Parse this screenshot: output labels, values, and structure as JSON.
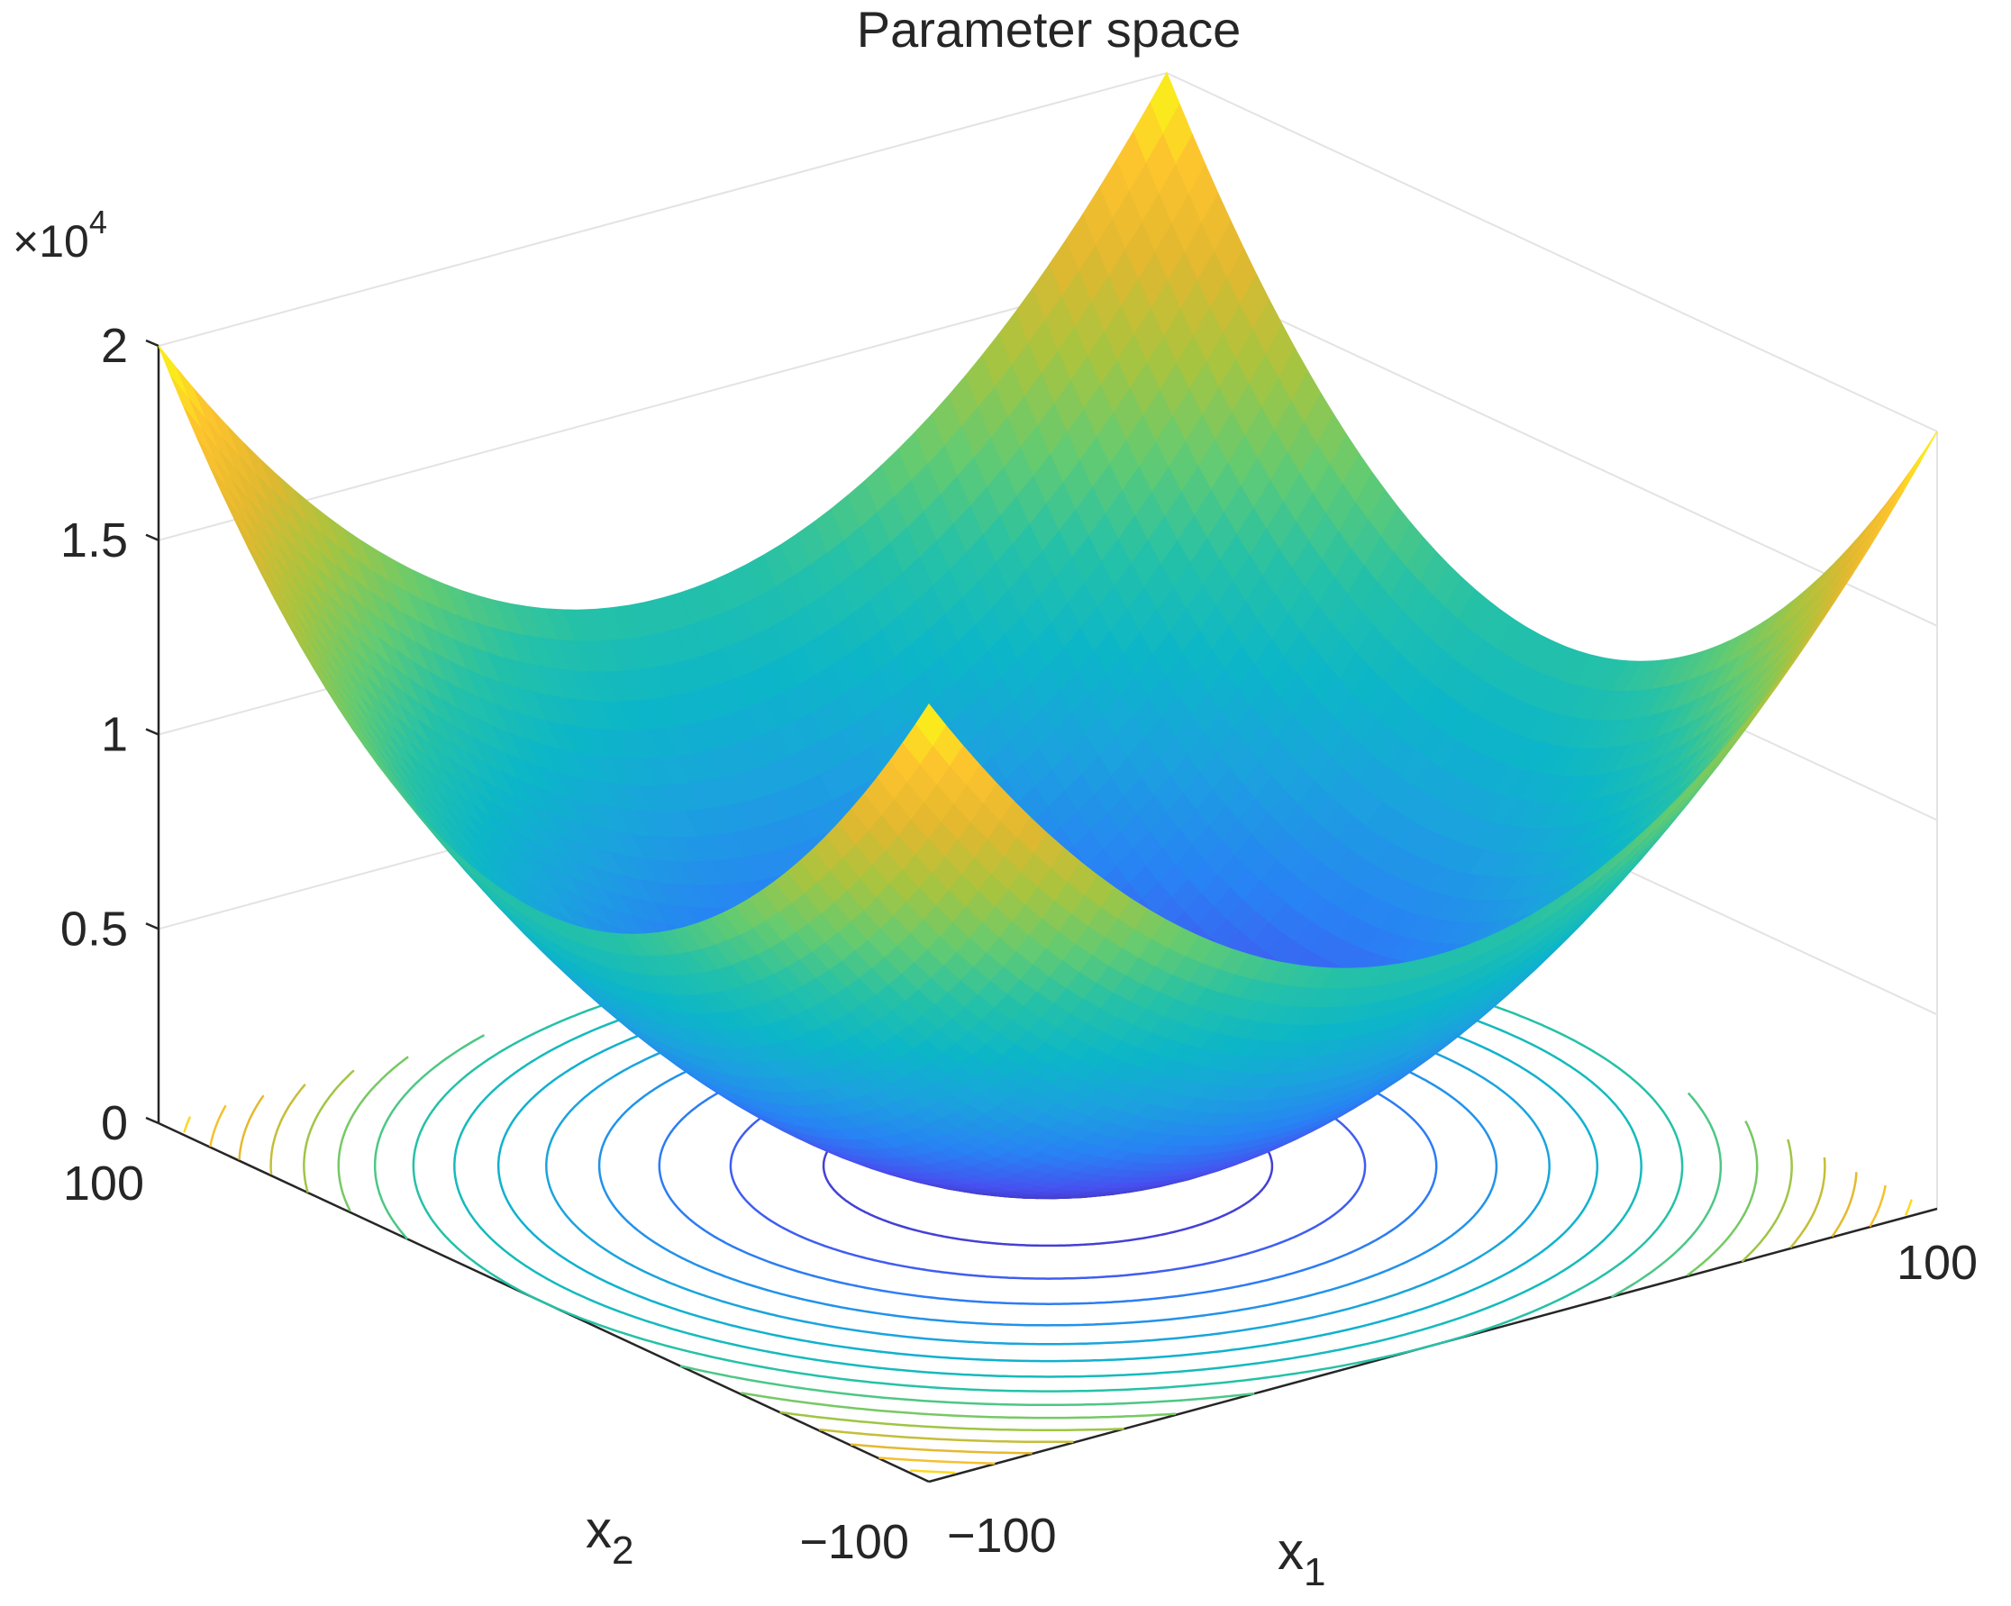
{
  "chart_data": {
    "type": "surface",
    "title": "Parameter space",
    "function": "z = x1^2 + x2^2",
    "x1_label": "x",
    "x1_sub": "1",
    "x2_label": "x",
    "x2_sub": "2",
    "x1_range": [
      -100,
      100
    ],
    "x2_range": [
      -100,
      100
    ],
    "z_range": [
      0,
      20000
    ],
    "z_multiplier": {
      "base": "×10",
      "exp": "4"
    },
    "x1_ticks": [
      {
        "value": -100,
        "label": "−100"
      },
      {
        "value": 100,
        "label": "100"
      }
    ],
    "x2_ticks": [
      {
        "value": -100,
        "label": "−100"
      },
      {
        "value": 100,
        "label": "100"
      }
    ],
    "z_ticks": [
      {
        "value": 0,
        "label": "0"
      },
      {
        "value": 5000,
        "label": "0.5"
      },
      {
        "value": 10000,
        "label": "1"
      },
      {
        "value": 15000,
        "label": "1.5"
      },
      {
        "value": 20000,
        "label": "2"
      }
    ],
    "contour_levels": [
      1250,
      2500,
      3750,
      5000,
      6250,
      7500,
      8750,
      10000,
      11250,
      12500,
      13750,
      15000,
      16250,
      17500,
      18750
    ],
    "colormap": "parula",
    "grid": true
  }
}
